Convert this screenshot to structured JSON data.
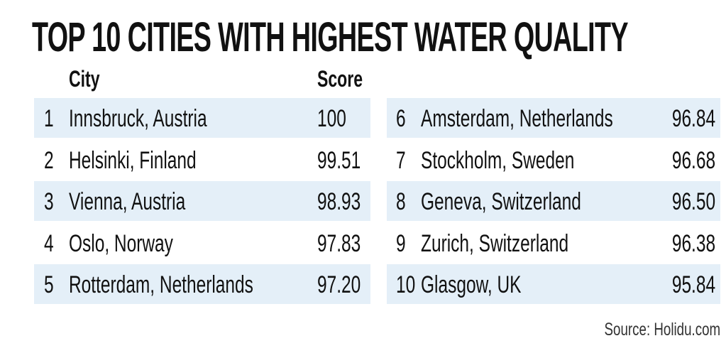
{
  "header": {
    "title": "TOP 10 CITIES WITH HIGHEST WATER QUALITY"
  },
  "table": {
    "headers": [
      "City",
      "Score"
    ],
    "rows": [
      [
        "1",
        "Innsbruck, Austria",
        "100"
      ],
      [
        "2",
        "Helsinki, Finland",
        "99.51"
      ],
      [
        "3",
        "Vienna, Austria",
        "98.93"
      ],
      [
        "4",
        "Oslo, Norway",
        "97.83"
      ],
      [
        "5",
        "Rotterdam, Netherlands",
        "97.20"
      ],
      [
        "6",
        "Amsterdam, Netherlands",
        "96.84"
      ],
      [
        "7",
        "Stockholm, Sweden",
        "96.68"
      ],
      [
        "8",
        "Geneva, Switzerland",
        "96.50"
      ],
      [
        "9",
        "Zurich, Switzerland",
        "96.38"
      ],
      [
        "10",
        "Glasgow, UK",
        "95.84"
      ]
    ]
  },
  "footer": {
    "source": "Source: Holidu.com"
  }
}
